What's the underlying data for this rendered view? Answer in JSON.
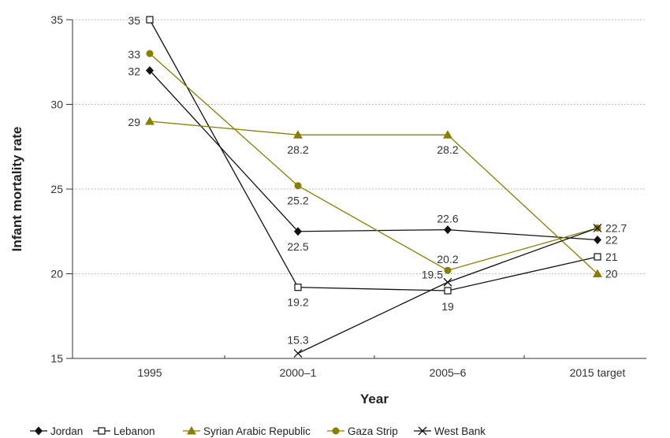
{
  "chart_data": {
    "type": "line",
    "title": "",
    "xlabel": "Year",
    "ylabel": "Infant mortality rate",
    "categories": [
      "1995",
      "2000–1",
      "2005–6",
      "2015 target"
    ],
    "ylim": [
      15,
      35
    ],
    "yticks": [
      "15",
      "20",
      "25",
      "30",
      "35"
    ],
    "grid": true,
    "legend_position": "bottom",
    "series": [
      {
        "name": "Jordan",
        "color": "#111111",
        "marker": "filled-diamond",
        "values": [
          32,
          22.5,
          22.6,
          22
        ],
        "labels": [
          "32",
          "22.5",
          "22.6",
          "22"
        ]
      },
      {
        "name": "Lebanon",
        "color": "#111111",
        "marker": "open-square",
        "values": [
          35,
          19.2,
          19,
          21
        ],
        "labels": [
          "35",
          "19.2",
          "19",
          "21"
        ]
      },
      {
        "name": "Syrian Arabic Republic",
        "color": "#8a7d00",
        "marker": "filled-triangle",
        "values": [
          29,
          28.2,
          28.2,
          20
        ],
        "labels": [
          "29",
          "28.2",
          "28.2",
          "20"
        ]
      },
      {
        "name": "Gaza Strip",
        "color": "#8a7d00",
        "marker": "filled-circle",
        "values": [
          33,
          25.2,
          20.2,
          22.7
        ],
        "labels": [
          "33",
          "25.2",
          "20.2",
          ""
        ]
      },
      {
        "name": "West Bank",
        "color": "#111111",
        "marker": "x-cross",
        "values": [
          null,
          15.3,
          19.5,
          22.7
        ],
        "labels": [
          "",
          "15.3",
          "19.5",
          "22.7"
        ]
      }
    ]
  }
}
